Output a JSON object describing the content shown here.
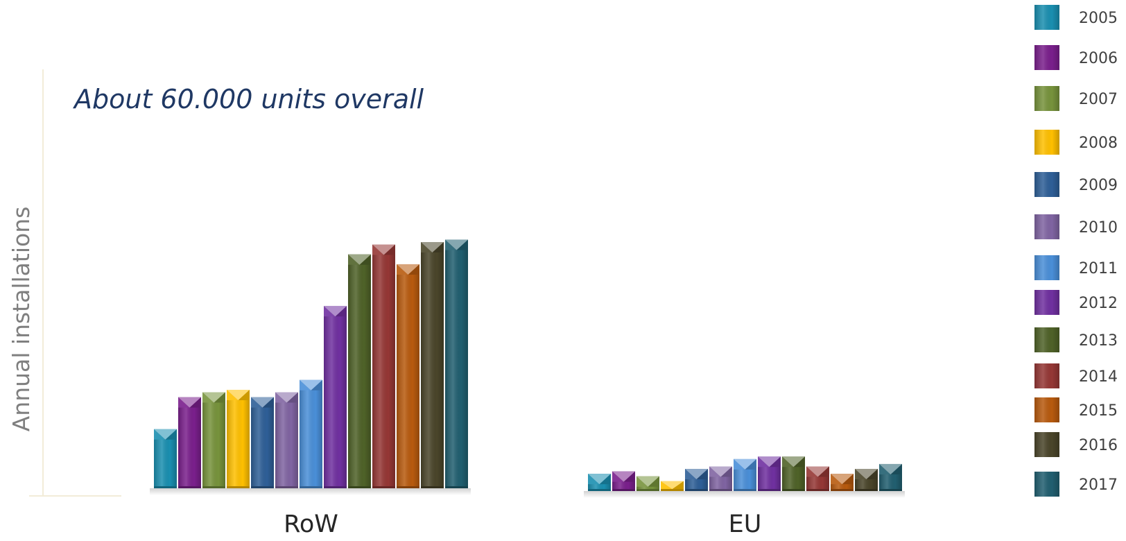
{
  "chart_data": {
    "type": "bar",
    "title": "",
    "annotation": "About 60.000 units overall",
    "xlabel": "",
    "ylabel": "Annual installations",
    "categories": [
      "RoW",
      "EU"
    ],
    "legend_position": "right",
    "grid": false,
    "ylim": [
      0,
      100
    ],
    "series": [
      {
        "name": "2005",
        "color": "#1a8fb0",
        "values": [
          24,
          7
        ]
      },
      {
        "name": "2006",
        "color": "#7a1f8c",
        "values": [
          37,
          8
        ]
      },
      {
        "name": "2007",
        "color": "#77933c",
        "values": [
          39,
          6
        ]
      },
      {
        "name": "2008",
        "color": "#ffc000",
        "values": [
          40,
          4
        ]
      },
      {
        "name": "2009",
        "color": "#2e5f97",
        "values": [
          37,
          9
        ]
      },
      {
        "name": "2010",
        "color": "#8064a2",
        "values": [
          39,
          10
        ]
      },
      {
        "name": "2011",
        "color": "#4a8fd8",
        "values": [
          44,
          13
        ]
      },
      {
        "name": "2012",
        "color": "#7030a0",
        "values": [
          74,
          14
        ]
      },
      {
        "name": "2013",
        "color": "#4f6228",
        "values": [
          95,
          14
        ]
      },
      {
        "name": "2014",
        "color": "#953735",
        "values": [
          99,
          10
        ]
      },
      {
        "name": "2015",
        "color": "#b85a0e",
        "values": [
          91,
          7
        ]
      },
      {
        "name": "2016",
        "color": "#4a452a",
        "values": [
          100,
          9
        ]
      },
      {
        "name": "2017",
        "color": "#215f70",
        "values": [
          101,
          11
        ]
      }
    ]
  }
}
